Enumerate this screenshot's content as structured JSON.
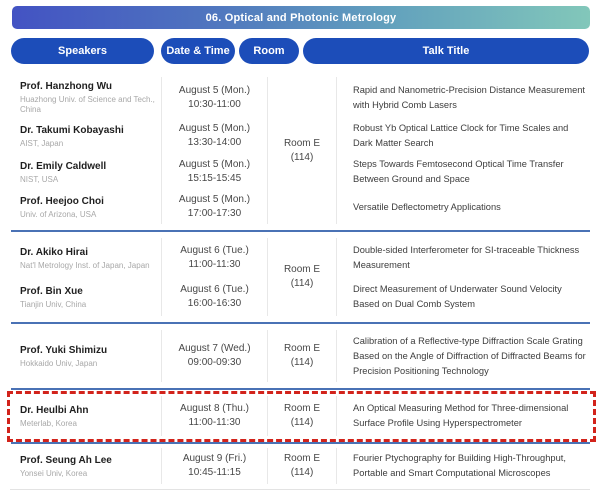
{
  "header": {
    "title": "06. Optical and Photonic Metrology"
  },
  "columns": {
    "speakers": "Speakers",
    "date_time": "Date & Time",
    "room": "Room",
    "talk_title": "Talk Title"
  },
  "colors": {
    "header_gradient_start": "#4353c3",
    "header_gradient_end": "#82c7ba",
    "column_pill_blue": "#1c4db9",
    "group_divider_blue": "#4a72b5",
    "highlight_dashed_red": "#d2231b"
  },
  "groups": [
    {
      "room_line1": "Room E",
      "room_line2": "(114)",
      "rows": [
        {
          "name": "Prof. Hanzhong Wu",
          "affiliation": "Huazhong Univ. of Science and Tech., China",
          "date": "August 5 (Mon.)",
          "time": "10:30-11:00",
          "title": "Rapid and Nanometric-Precision Distance Measurement with Hybrid Comb Lasers"
        },
        {
          "name": "Dr. Takumi Kobayashi",
          "affiliation": "AIST, Japan",
          "date": "August 5 (Mon.)",
          "time": "13:30-14:00",
          "title": "Robust Yb Optical Lattice Clock for Time Scales and Dark Matter Search"
        },
        {
          "name": "Dr. Emily Caldwell",
          "affiliation": "NIST, USA",
          "date": "August 5 (Mon.)",
          "time": "15:15-15:45",
          "title": "Steps Towards Femtosecond Optical Time Transfer Between Ground and Space"
        },
        {
          "name": "Prof. Heejoo Choi",
          "affiliation": "Univ. of Arizona, USA",
          "date": "August 5 (Mon.)",
          "time": "17:00-17:30",
          "title": "Versatile Deflectometry Applications"
        }
      ]
    },
    {
      "room_line1": "Room E",
      "room_line2": "(114)",
      "rows": [
        {
          "name": "Dr. Akiko Hirai",
          "affiliation": "Nat'l Metrology Inst. of Japan, Japan",
          "date": "August 6 (Tue.)",
          "time": "11:00-11:30",
          "title": "Double-sided Interferometer for SI-traceable Thickness Measurement"
        },
        {
          "name": "Prof. Bin Xue",
          "affiliation": "Tianjin Univ, China",
          "date": "August 6 (Tue.)",
          "time": "16:00-16:30",
          "title": "Direct Measurement of Underwater Sound Velocity Based on Dual Comb System"
        }
      ]
    },
    {
      "room_line1": "Room E",
      "room_line2": "(114)",
      "rows": [
        {
          "name": "Prof. Yuki Shimizu",
          "affiliation": "Hokkaido Univ, Japan",
          "date": "August 7 (Wed.)",
          "time": "09:00-09:30",
          "title": "Calibration of a Reflective-type Diffraction Scale Grating Based on the Angle of Diffraction of Diffracted Beams for Precision Positioning Technology"
        }
      ]
    },
    {
      "room_line1": "Room E",
      "room_line2": "(114)",
      "highlighted": true,
      "rows": [
        {
          "name": "Dr. Heulbi Ahn",
          "affiliation": "Meterlab, Korea",
          "date": "August 8 (Thu.)",
          "time": "11:00-11:30",
          "title": "An Optical Measuring Method for Three-dimensional Surface Profile Using Hyperspectrometer"
        }
      ]
    },
    {
      "room_line1": "Room E",
      "room_line2": "(114)",
      "rows": [
        {
          "name": "Prof. Seung Ah Lee",
          "affiliation": "Yonsei Univ, Korea",
          "date": "August 9 (Fri.)",
          "time": "10:45-11:15",
          "title": "Fourier Ptychography for Building High-Throughput, Portable and Smart Computational Microscopes"
        }
      ]
    }
  ]
}
